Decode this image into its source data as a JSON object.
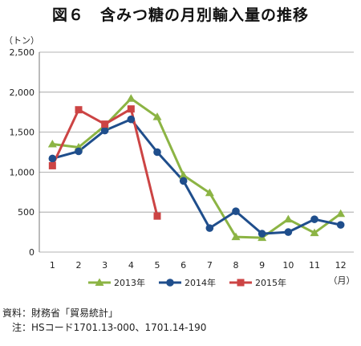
{
  "title": "図６　含みつ糖の月別輸入量の推移",
  "chart_data": {
    "type": "line",
    "title": "図６　含みつ糖の月別輸入量の推移",
    "ylabel": "（トン）",
    "xlabel": "（月）",
    "x": [
      1,
      2,
      3,
      4,
      5,
      6,
      7,
      8,
      9,
      10,
      11,
      12
    ],
    "ylim": [
      0,
      2500
    ],
    "yticks": [
      0,
      500,
      1000,
      1500,
      2000,
      2500
    ],
    "ytick_labels": [
      "0",
      "500",
      "1,000",
      "1,500",
      "2,000",
      "2,500"
    ],
    "grid": "horizontal",
    "legend_position": "bottom",
    "series": [
      {
        "name": "2013年",
        "color": "#8cb444",
        "marker": "triangle",
        "values": [
          1350,
          1310,
          1580,
          1920,
          1690,
          960,
          740,
          190,
          180,
          410,
          240,
          480
        ]
      },
      {
        "name": "2014年",
        "color": "#1f4e8c",
        "marker": "circle",
        "values": [
          1170,
          1260,
          1520,
          1660,
          1250,
          890,
          300,
          510,
          230,
          250,
          410,
          340
        ]
      },
      {
        "name": "2015年",
        "color": "#cc4444",
        "marker": "square",
        "values": [
          1080,
          1780,
          1600,
          1790,
          450,
          null,
          null,
          null,
          null,
          null,
          null,
          null
        ]
      }
    ]
  },
  "notes": {
    "source": "資料：財務省「貿易統計」",
    "note": "注：HSコード1701.13-000、1701.14-190"
  }
}
